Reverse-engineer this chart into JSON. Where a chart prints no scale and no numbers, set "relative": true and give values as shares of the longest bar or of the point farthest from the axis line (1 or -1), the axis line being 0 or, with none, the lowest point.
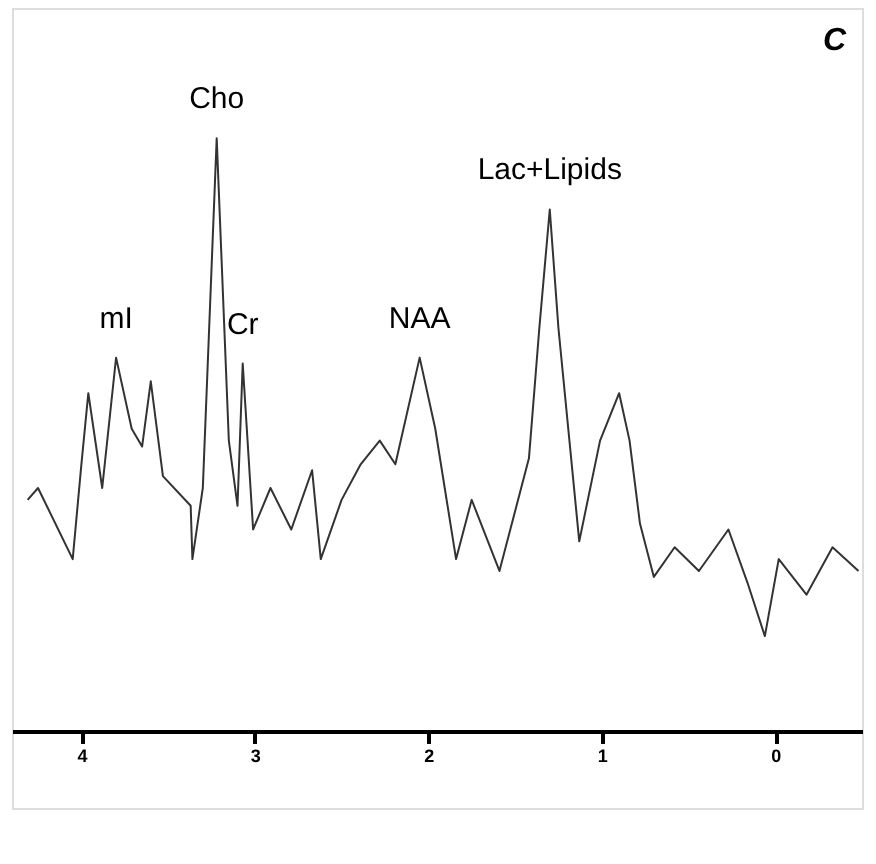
{
  "chart_data": {
    "type": "line",
    "title": "C",
    "relative": true,
    "xlim": [
      4.4,
      -0.5
    ],
    "xticks": [
      4,
      3,
      2,
      1,
      0
    ],
    "grid": false,
    "line_style": "solid",
    "series": [
      {
        "color": "#333333",
        "x": [
          4.31,
          4.25,
          4.05,
          4.0,
          3.96,
          3.88,
          3.8,
          3.71,
          3.65,
          3.6,
          3.53,
          3.37,
          3.36,
          3.3,
          3.22,
          3.15,
          3.1,
          3.07,
          3.01,
          2.91,
          2.79,
          2.67,
          2.62,
          2.5,
          2.39,
          2.28,
          2.19,
          2.05,
          1.96,
          1.84,
          1.75,
          1.59,
          1.42,
          1.36,
          1.3,
          1.25,
          1.13,
          1.01,
          0.9,
          0.84,
          0.78,
          0.7,
          0.58,
          0.44,
          0.27,
          0.16,
          0.06,
          -0.02,
          -0.18,
          -0.33,
          -0.48
        ],
        "values": [
          0.39,
          0.41,
          0.29,
          0.45,
          0.57,
          0.41,
          0.63,
          0.51,
          0.48,
          0.59,
          0.43,
          0.38,
          0.29,
          0.41,
          1.0,
          0.49,
          0.38,
          0.62,
          0.34,
          0.41,
          0.34,
          0.44,
          0.29,
          0.39,
          0.45,
          0.49,
          0.45,
          0.63,
          0.51,
          0.29,
          0.39,
          0.27,
          0.46,
          0.68,
          0.88,
          0.68,
          0.32,
          0.49,
          0.57,
          0.49,
          0.35,
          0.26,
          0.31,
          0.27,
          0.34,
          0.25,
          0.16,
          0.29,
          0.23,
          0.31,
          0.27
        ]
      }
    ],
    "annotations": [
      {
        "text": "mI",
        "x": 3.8,
        "y": 0.63
      },
      {
        "text": "Cho",
        "x": 3.22,
        "y": 1.0
      },
      {
        "text": "Cr",
        "x": 3.07,
        "y": 0.62
      },
      {
        "text": "NAA",
        "x": 2.05,
        "y": 0.63
      },
      {
        "text": "Lac+Lipids",
        "x": 1.3,
        "y": 0.88
      }
    ]
  }
}
